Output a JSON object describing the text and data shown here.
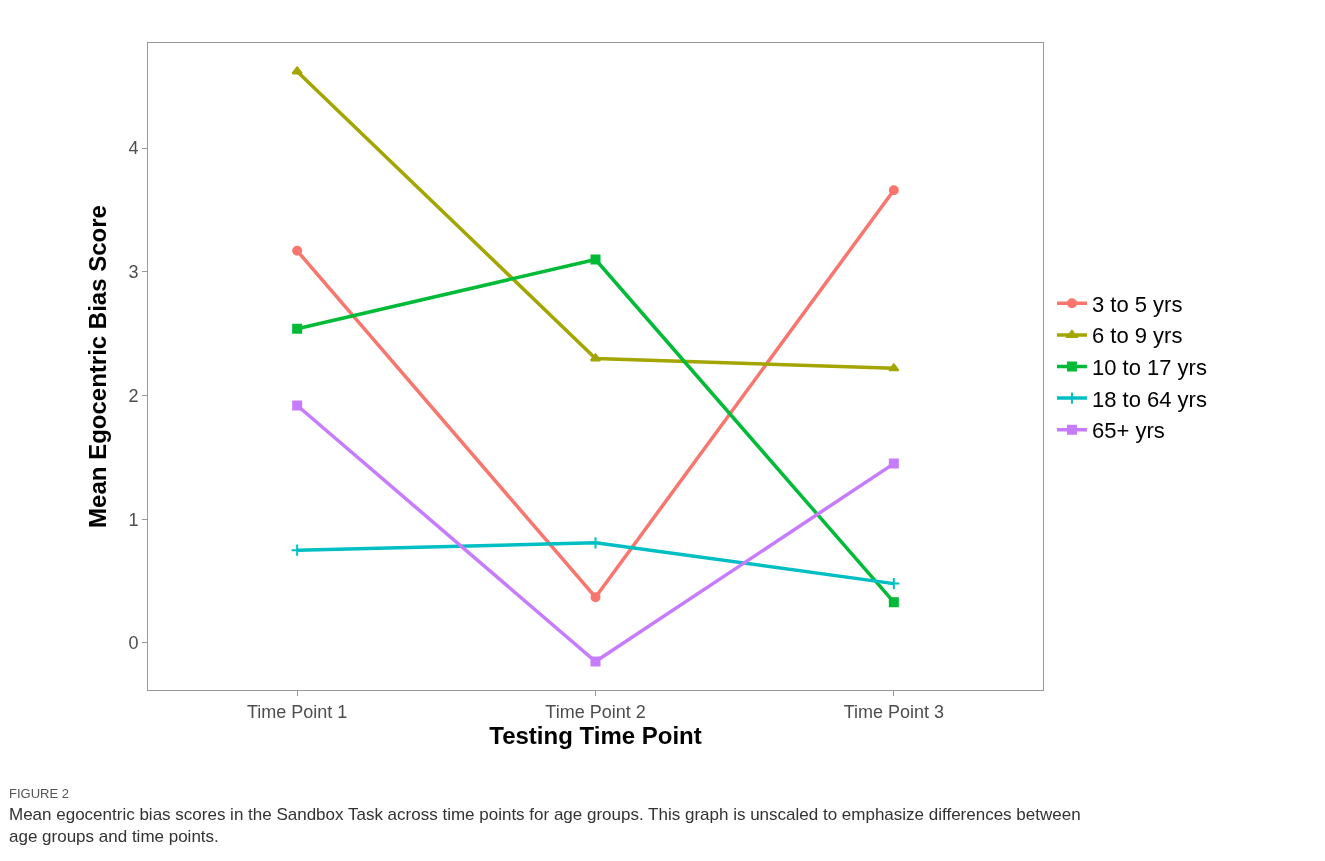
{
  "chart_data": {
    "type": "line",
    "xlabel": "Testing Time Point",
    "ylabel": "Mean Egocentric Bias Score",
    "categories": [
      "Time Point 1",
      "Time Point 2",
      "Time Point 3"
    ],
    "series": [
      {
        "name": "3 to 5 yrs",
        "color": "#f8766d",
        "marker": "circle",
        "values": [
          3.17,
          0.37,
          3.66
        ]
      },
      {
        "name": "6 to 9 yrs",
        "color": "#a3a500",
        "marker": "triangle",
        "values": [
          4.62,
          2.3,
          2.22
        ]
      },
      {
        "name": "10 to 17 yrs",
        "color": "#00ba38",
        "marker": "square",
        "values": [
          2.54,
          3.1,
          0.33
        ]
      },
      {
        "name": "18 to 64 yrs",
        "color": "#00bfc4",
        "marker": "cross",
        "values": [
          0.75,
          0.81,
          0.48
        ]
      },
      {
        "name": "65+ yrs",
        "color": "#c77cff",
        "marker": "square",
        "values": [
          1.92,
          -0.15,
          1.45
        ]
      }
    ],
    "ylim": [
      -0.38,
      4.85
    ],
    "yticks": [
      0,
      1,
      2,
      3,
      4
    ],
    "legend": "right",
    "line_style": "solid",
    "annotations": [
      "FIGURE 2",
      "Mean egocentric bias scores in the Sandbox Task across time points for age groups. This graph is unscaled to emphasize differences between age groups and time points."
    ]
  }
}
